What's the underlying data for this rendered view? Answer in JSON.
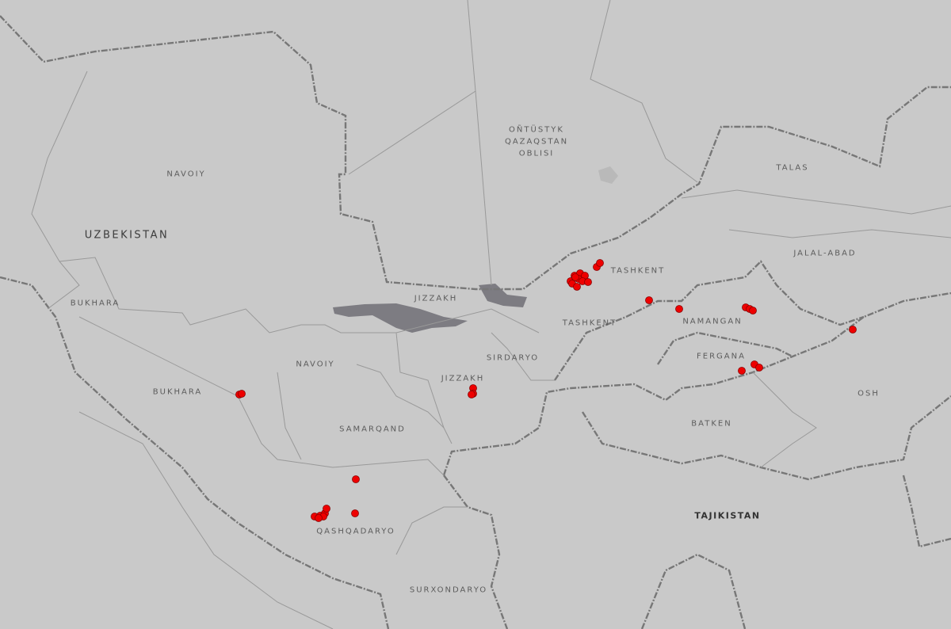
{
  "map": {
    "colors": {
      "land": "#c9c9c9",
      "border": "#7a7a7a",
      "admin": "#9a9a9a",
      "water": "#7d7c82",
      "marker": "#ee0000",
      "marker_outline": "#8a0000"
    },
    "country_labels": {
      "uzbekistan": "UZBEKISTAN",
      "tajikistan": "TAJIKISTAN"
    },
    "region_labels": {
      "ontustyk": "OÑTÜSTYK\nQAZAQSTAN\nOBLISI",
      "navoiy_n": "NAVOIY",
      "navoiy_s": "NAVOIY",
      "bukhara_n": "BUKHARA",
      "bukhara_s": "BUKHARA",
      "jizzakh_n": "JIZZAKH",
      "jizzakh_s": "JIZZAKH",
      "sirdaryo": "SIRDARYO",
      "tashkent_e": "TASHKENT",
      "tashkent_s": "TASHKENT",
      "namangan": "NAMANGAN",
      "fergana": "FERGANA",
      "talas": "TALAS",
      "jalal_abad": "JALAL-ABAD",
      "osh": "OSH",
      "batken": "BATKEN",
      "samarqand": "SAMARQAND",
      "qashqadaryo": "QASHQADARYO",
      "surxondaryo": "SURXONDARYO"
    },
    "marker_icon": "red-circle-marker"
  }
}
